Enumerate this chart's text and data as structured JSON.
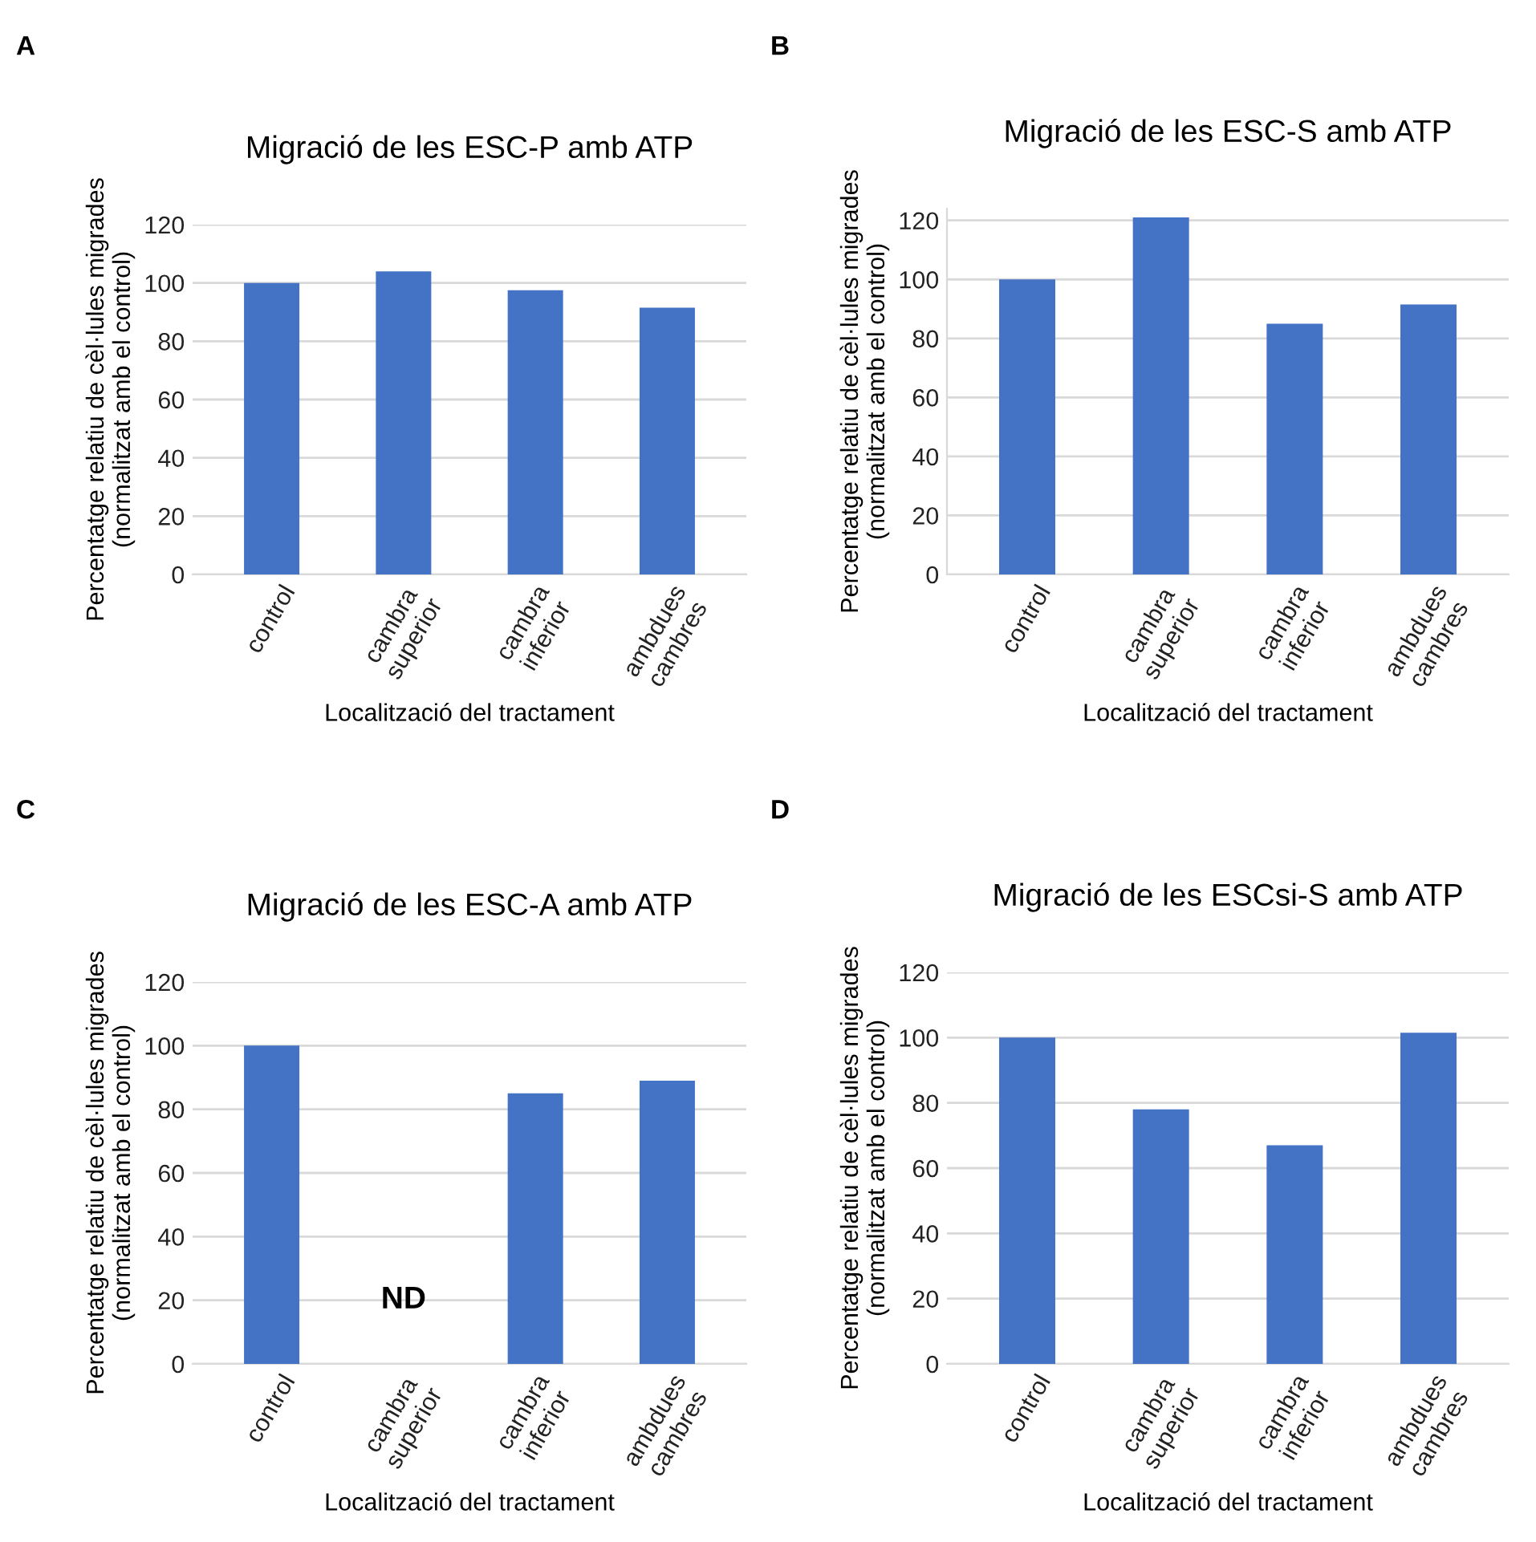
{
  "chart_data": [
    {
      "type": "bar",
      "title": "Migració de les ESC-P amb ATP",
      "xlabel": "Localització del tractament",
      "ylabel": "Percentatge relatiu de cèl·lules migrades\n(normalitzat amb el control)",
      "categories": [
        "control",
        "cambra superior",
        "cambra inferior",
        "ambdues cambres"
      ],
      "values": [
        100,
        104,
        97.5,
        91.5
      ],
      "color": "#4472c4",
      "ylim": [
        0,
        120
      ],
      "yticks": [
        0,
        20,
        40,
        60,
        80,
        100,
        120
      ],
      "grid": "y",
      "annotations": [
        "A"
      ]
    },
    {
      "type": "bar",
      "title": "Migració de les ESC-S amb ATP",
      "xlabel": "Localització del tractament",
      "ylabel": "Percentatge relatiu de cèl·lules migrades\n(normalitzat amb el control)",
      "categories": [
        "control",
        "cambra superior",
        "cambra inferior",
        "ambdues cambres"
      ],
      "values": [
        100,
        121,
        85,
        91.5
      ],
      "color": "#4472c4",
      "ylim": [
        0,
        124
      ],
      "yticks": [
        0,
        20,
        40,
        60,
        80,
        100,
        120
      ],
      "grid": "y",
      "annotations": [
        "B"
      ]
    },
    {
      "type": "bar",
      "title": "Migració de les ESC-A amb ATP",
      "xlabel": "Localització del tractament",
      "ylabel": "Percentatge relatiu de cèl·lules migrades\n(normalitzat amb el control)",
      "categories": [
        "control",
        "cambra superior",
        "cambra inferior",
        "ambdues cambres"
      ],
      "values": [
        100,
        null,
        85,
        89
      ],
      "color": "#4472c4",
      "ylim": [
        0,
        120
      ],
      "yticks": [
        0,
        20,
        40,
        60,
        80,
        100,
        120
      ],
      "grid": "y",
      "annotations": [
        "C",
        "ND"
      ]
    },
    {
      "type": "bar",
      "title": "Migració de les ESCsi-S amb ATP",
      "xlabel": "Localització del tractament",
      "ylabel": "Percentatge relatiu de cèl·lules migrades\n(normalitzat amb el control)",
      "categories": [
        "control",
        "cambra superior",
        "cambra inferior",
        "ambdues cambres"
      ],
      "values": [
        100,
        78,
        67,
        101.5
      ],
      "color": "#4472c4",
      "ylim": [
        0,
        120
      ],
      "yticks": [
        0,
        20,
        40,
        60,
        80,
        100,
        120
      ],
      "grid": "y",
      "annotations": [
        "D"
      ]
    }
  ]
}
